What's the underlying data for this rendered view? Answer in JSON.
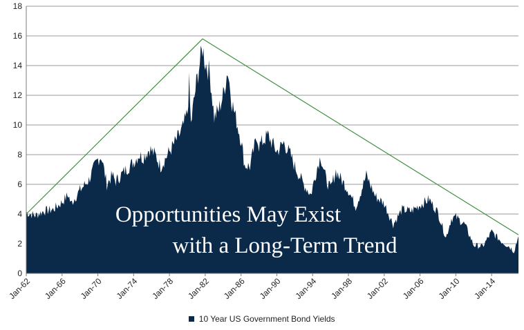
{
  "chart_data": {
    "type": "area",
    "series": [
      {
        "name": "10 Year US Government Bond Yields",
        "color": "#0b2a4a",
        "points": [
          [
            1962.0,
            4.1
          ],
          [
            1963.0,
            3.9
          ],
          [
            1964.0,
            4.2
          ],
          [
            1965.0,
            4.3
          ],
          [
            1966.0,
            4.8
          ],
          [
            1966.7,
            5.3
          ],
          [
            1967.0,
            4.7
          ],
          [
            1968.0,
            5.6
          ],
          [
            1969.0,
            6.3
          ],
          [
            1970.0,
            7.7
          ],
          [
            1970.4,
            7.9
          ],
          [
            1971.0,
            6.0
          ],
          [
            1971.6,
            6.6
          ],
          [
            1972.0,
            6.2
          ],
          [
            1973.0,
            6.9
          ],
          [
            1974.0,
            7.5
          ],
          [
            1974.6,
            8.0
          ],
          [
            1975.0,
            7.8
          ],
          [
            1975.8,
            8.4
          ],
          [
            1976.5,
            7.9
          ],
          [
            1977.0,
            7.2
          ],
          [
            1978.0,
            8.2
          ],
          [
            1979.0,
            9.2
          ],
          [
            1979.5,
            9.8
          ],
          [
            1980.0,
            10.8
          ],
          [
            1980.2,
            12.8
          ],
          [
            1980.4,
            10.0
          ],
          [
            1980.6,
            11.0
          ],
          [
            1981.0,
            12.8
          ],
          [
            1981.7,
            15.2
          ],
          [
            1982.0,
            14.2
          ],
          [
            1982.5,
            13.5
          ],
          [
            1983.0,
            10.5
          ],
          [
            1983.5,
            11.0
          ],
          [
            1984.0,
            12.0
          ],
          [
            1984.5,
            13.7
          ],
          [
            1985.0,
            11.5
          ],
          [
            1986.0,
            9.0
          ],
          [
            1986.4,
            7.3
          ],
          [
            1987.0,
            7.2
          ],
          [
            1987.8,
            9.3
          ],
          [
            1988.0,
            8.6
          ],
          [
            1989.0,
            9.3
          ],
          [
            1990.0,
            8.2
          ],
          [
            1990.8,
            8.8
          ],
          [
            1991.5,
            8.0
          ],
          [
            1992.0,
            7.2
          ],
          [
            1993.0,
            6.0
          ],
          [
            1993.8,
            5.3
          ],
          [
            1994.5,
            7.1
          ],
          [
            1994.9,
            7.9
          ],
          [
            1995.5,
            6.3
          ],
          [
            1996.0,
            5.7
          ],
          [
            1996.6,
            6.9
          ],
          [
            1997.0,
            6.5
          ],
          [
            1998.0,
            5.6
          ],
          [
            1998.8,
            4.5
          ],
          [
            1999.0,
            4.8
          ],
          [
            2000.0,
            6.6
          ],
          [
            2001.0,
            5.2
          ],
          [
            2002.0,
            4.7
          ],
          [
            2003.0,
            3.3
          ],
          [
            2004.0,
            4.3
          ],
          [
            2005.0,
            4.2
          ],
          [
            2006.0,
            4.6
          ],
          [
            2007.0,
            5.0
          ],
          [
            2008.0,
            4.1
          ],
          [
            2008.9,
            2.4
          ],
          [
            2009.5,
            3.7
          ],
          [
            2010.0,
            3.8
          ],
          [
            2011.0,
            3.3
          ],
          [
            2012.0,
            1.9
          ],
          [
            2013.0,
            1.8
          ],
          [
            2014.0,
            2.8
          ],
          [
            2015.0,
            2.2
          ],
          [
            2016.0,
            1.8
          ],
          [
            2016.5,
            1.5
          ],
          [
            2017.0,
            2.5
          ]
        ]
      }
    ],
    "x_ticks": [
      "Jan-62",
      "Jan-66",
      "Jan-70",
      "Jan-74",
      "Jan-78",
      "Jan-82",
      "Jan-86",
      "Jan-90",
      "Jan-94",
      "Jan-98",
      "Jan-02",
      "Jan-06",
      "Jan-10",
      "Jan-14"
    ],
    "x_tick_values": [
      1962,
      1966,
      1970,
      1974,
      1978,
      1982,
      1986,
      1990,
      1994,
      1998,
      2002,
      2006,
      2010,
      2014
    ],
    "y_ticks": [
      "0",
      "2",
      "4",
      "6",
      "8",
      "10",
      "12",
      "14",
      "16",
      "18"
    ],
    "y_tick_values": [
      0,
      2,
      4,
      6,
      8,
      10,
      12,
      14,
      16,
      18
    ],
    "xlim": [
      1962,
      2017
    ],
    "ylim": [
      0,
      18
    ],
    "grid": "horizontal",
    "trend_line": {
      "color": "#3e8f3e",
      "points": [
        [
          1962.0,
          4.0
        ],
        [
          1981.7,
          15.8
        ],
        [
          2017.0,
          2.6
        ]
      ]
    },
    "overlay_text": {
      "line1": "Opportunities May Exist",
      "line2": "with a Long-Term Trend"
    },
    "legend_position": "bottom"
  }
}
